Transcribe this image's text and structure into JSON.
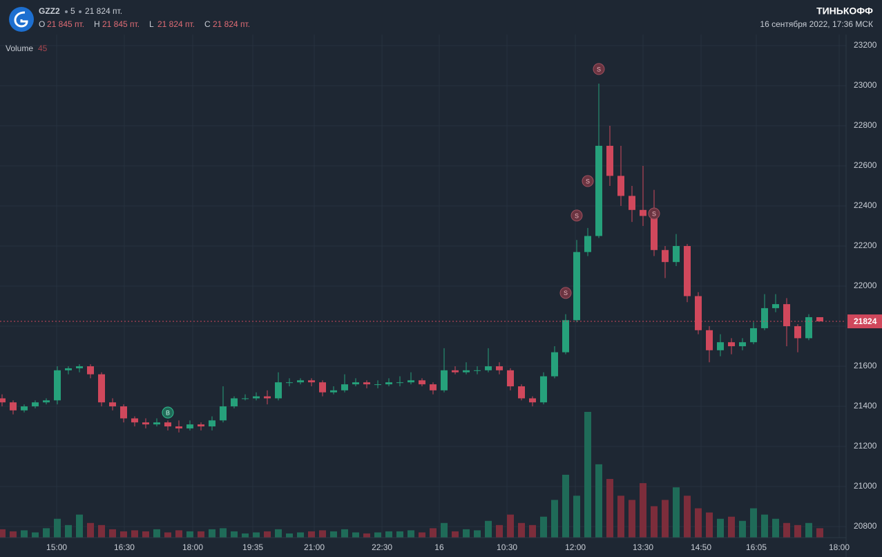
{
  "chart_data": {
    "type": "candlestick",
    "symbol": "GZZ2",
    "interval": "5",
    "last_text": "21 824 пт.",
    "ohlc": [
      {
        "key": "O",
        "value": "21 845 пт."
      },
      {
        "key": "H",
        "value": "21 845 пт."
      },
      {
        "key": "L",
        "value": "21 824 пт."
      },
      {
        "key": "C",
        "value": "21 824 пт."
      }
    ],
    "brand": "ТИНЬКОФФ",
    "datetime": "16 сентября 2022, 17:36 МСК",
    "volume_label": "Volume",
    "volume_last": 45,
    "last_price": 21824,
    "up_color": "#26a17b",
    "down_color": "#d0485c",
    "volume_up_color": "#1f6b58",
    "volume_down_color": "#7c2d3b",
    "candles": [
      [
        21440,
        21460,
        21400,
        21420
      ],
      [
        21420,
        21430,
        21360,
        21380
      ],
      [
        21380,
        21410,
        21370,
        21400
      ],
      [
        21400,
        21430,
        21390,
        21420
      ],
      [
        21420,
        21440,
        21410,
        21430
      ],
      [
        21430,
        21600,
        21410,
        21580
      ],
      [
        21580,
        21600,
        21560,
        21590
      ],
      [
        21590,
        21610,
        21570,
        21600
      ],
      [
        21600,
        21610,
        21540,
        21560
      ],
      [
        21560,
        21570,
        21400,
        21420
      ],
      [
        21420,
        21440,
        21380,
        21400
      ],
      [
        21400,
        21410,
        21320,
        21340
      ],
      [
        21340,
        21350,
        21300,
        21320
      ],
      [
        21320,
        21340,
        21290,
        21310
      ],
      [
        21310,
        21340,
        21300,
        21320
      ],
      [
        21320,
        21330,
        21280,
        21300
      ],
      [
        21300,
        21330,
        21270,
        21290
      ],
      [
        21290,
        21330,
        21280,
        21310
      ],
      [
        21310,
        21320,
        21280,
        21300
      ],
      [
        21300,
        21350,
        21280,
        21330
      ],
      [
        21330,
        21500,
        21320,
        21400
      ],
      [
        21400,
        21450,
        21390,
        21440
      ],
      [
        21440,
        21460,
        21430,
        21440
      ],
      [
        21440,
        21470,
        21430,
        21450
      ],
      [
        21450,
        21480,
        21410,
        21440
      ],
      [
        21440,
        21570,
        21430,
        21520
      ],
      [
        21520,
        21540,
        21500,
        21520
      ],
      [
        21520,
        21540,
        21510,
        21530
      ],
      [
        21530,
        21540,
        21500,
        21520
      ],
      [
        21520,
        21530,
        21450,
        21470
      ],
      [
        21470,
        21500,
        21460,
        21480
      ],
      [
        21480,
        21560,
        21470,
        21510
      ],
      [
        21510,
        21540,
        21500,
        21520
      ],
      [
        21520,
        21530,
        21490,
        21510
      ],
      [
        21510,
        21530,
        21490,
        21510
      ],
      [
        21510,
        21540,
        21500,
        21520
      ],
      [
        21520,
        21550,
        21500,
        21520
      ],
      [
        21520,
        21570,
        21510,
        21530
      ],
      [
        21530,
        21540,
        21500,
        21510
      ],
      [
        21510,
        21520,
        21460,
        21480
      ],
      [
        21480,
        21690,
        21470,
        21580
      ],
      [
        21580,
        21600,
        21560,
        21570
      ],
      [
        21570,
        21620,
        21560,
        21580
      ],
      [
        21580,
        21600,
        21560,
        21580
      ],
      [
        21580,
        21690,
        21570,
        21600
      ],
      [
        21600,
        21620,
        21560,
        21580
      ],
      [
        21580,
        21590,
        21480,
        21500
      ],
      [
        21500,
        21510,
        21430,
        21440
      ],
      [
        21440,
        21450,
        21400,
        21420
      ],
      [
        21420,
        21570,
        21410,
        21550
      ],
      [
        21550,
        21700,
        21540,
        21670
      ],
      [
        21670,
        21860,
        21660,
        21830
      ],
      [
        21830,
        22230,
        21820,
        22170
      ],
      [
        22170,
        22290,
        22150,
        22250
      ],
      [
        22250,
        23010,
        22240,
        22700
      ],
      [
        22700,
        22800,
        22500,
        22550
      ],
      [
        22550,
        22700,
        22400,
        22450
      ],
      [
        22450,
        22500,
        22320,
        22380
      ],
      [
        22380,
        22600,
        22300,
        22350
      ],
      [
        22350,
        22480,
        22150,
        22180
      ],
      [
        22180,
        22200,
        22040,
        22120
      ],
      [
        22120,
        22260,
        22100,
        22200
      ],
      [
        22200,
        22210,
        21920,
        21950
      ],
      [
        21950,
        21970,
        21760,
        21780
      ],
      [
        21780,
        21800,
        21620,
        21680
      ],
      [
        21680,
        21760,
        21650,
        21720
      ],
      [
        21720,
        21740,
        21660,
        21700
      ],
      [
        21700,
        21740,
        21680,
        21720
      ],
      [
        21720,
        21820,
        21710,
        21790
      ],
      [
        21790,
        21960,
        21780,
        21890
      ],
      [
        21890,
        21960,
        21870,
        21910
      ],
      [
        21910,
        21940,
        21700,
        21800
      ],
      [
        21800,
        21810,
        21670,
        21740
      ],
      [
        21740,
        21860,
        21730,
        21845
      ],
      [
        21845,
        21845,
        21824,
        21824
      ]
    ],
    "volumes": [
      40,
      30,
      35,
      25,
      45,
      90,
      60,
      110,
      70,
      60,
      40,
      30,
      35,
      30,
      40,
      25,
      35,
      30,
      30,
      40,
      45,
      30,
      20,
      25,
      30,
      40,
      20,
      25,
      30,
      35,
      30,
      40,
      25,
      20,
      25,
      30,
      30,
      35,
      25,
      45,
      70,
      30,
      40,
      35,
      80,
      60,
      110,
      70,
      60,
      100,
      180,
      300,
      200,
      600,
      350,
      280,
      200,
      180,
      260,
      150,
      180,
      240,
      200,
      140,
      120,
      90,
      100,
      80,
      140,
      110,
      90,
      70,
      60,
      70,
      45
    ],
    "vlim": [
      0,
      2400
    ],
    "markers": [
      {
        "label": "B",
        "index": 15,
        "price": 21369
      },
      {
        "label": "S",
        "index": 51,
        "price": 21966
      },
      {
        "label": "S",
        "index": 52,
        "price": 22352
      },
      {
        "label": "S",
        "index": 53,
        "price": 22524
      },
      {
        "label": "S",
        "index": 54,
        "price": 23083
      },
      {
        "label": "S",
        "index": 59,
        "price": 22362
      }
    ],
    "ylim": [
      20745,
      23255
    ],
    "yticks": [
      20800,
      21000,
      21200,
      21400,
      21600,
      21800,
      22000,
      22200,
      22400,
      22600,
      22800,
      23000,
      23200
    ],
    "xticks": [
      {
        "value": 4.94,
        "label": "15:00"
      },
      {
        "value": 11.06,
        "label": "16:30"
      },
      {
        "value": 17.25,
        "label": "18:00"
      },
      {
        "value": 22.69,
        "label": "19:35"
      },
      {
        "value": 28.25,
        "label": "21:00"
      },
      {
        "value": 34.38,
        "label": "22:30"
      },
      {
        "value": 39.56,
        "label": "16"
      },
      {
        "value": 45.69,
        "label": "10:30"
      },
      {
        "value": 51.88,
        "label": "12:00"
      },
      {
        "value": 58,
        "label": "13:30"
      },
      {
        "value": 63.25,
        "label": "14:50"
      },
      {
        "value": 68.25,
        "label": "16:05"
      },
      {
        "value": 75.75,
        "label": "18:00"
      }
    ],
    "grid": true
  }
}
